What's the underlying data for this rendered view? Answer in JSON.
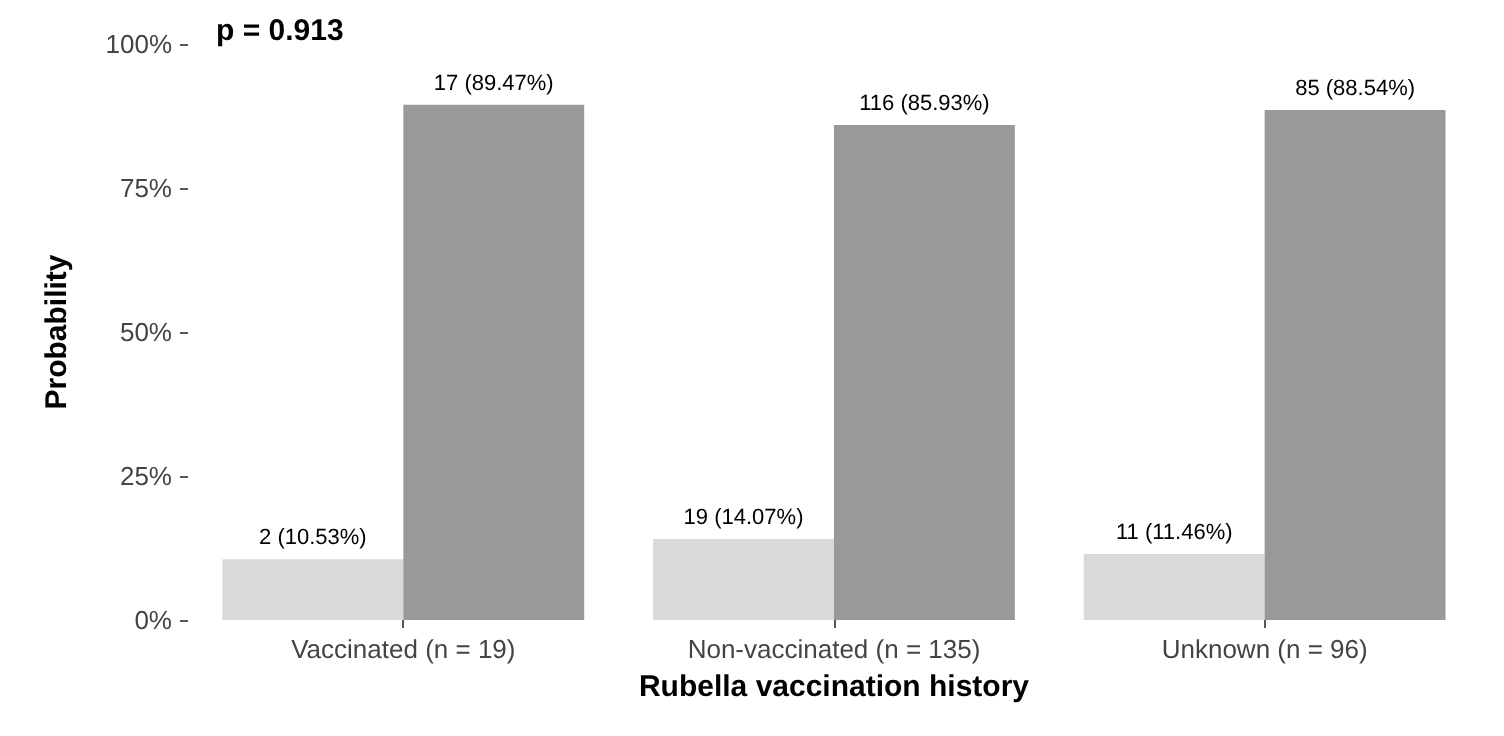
{
  "chart_data": {
    "type": "bar",
    "xlabel": "Rubella vaccination history",
    "ylabel": "Probability",
    "categories": [
      "Vaccinated (n = 19)",
      "Non-vaccinated (n = 135)",
      "Unknown (n = 96)"
    ],
    "series": [
      {
        "color": "#d9d9d9",
        "values": [
          10.53,
          14.07,
          11.46
        ],
        "value_labels": [
          "2 (10.53%)",
          "19 (14.07%)",
          "11 (11.46%)"
        ]
      },
      {
        "color": "#999999",
        "values": [
          89.47,
          85.93,
          88.54
        ],
        "value_labels": [
          "17 (89.47%)",
          "116 (85.93%)",
          "85 (88.54%)"
        ]
      }
    ],
    "ylim": [
      0,
      100
    ],
    "yticks": [
      {
        "value": 0,
        "label": "0%"
      },
      {
        "value": 25,
        "label": "25%"
      },
      {
        "value": 50,
        "label": "50%"
      },
      {
        "value": 75,
        "label": "75%"
      },
      {
        "value": 100,
        "label": "100%"
      }
    ],
    "grid": false,
    "annotations": [
      "p = 0.913"
    ]
  }
}
